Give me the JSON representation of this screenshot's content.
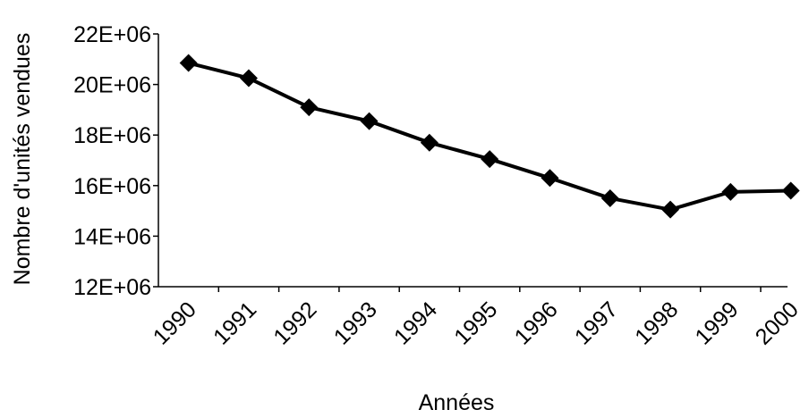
{
  "chart_data": {
    "type": "line",
    "title": "",
    "xlabel": "Années",
    "ylabel": "Nombre d'unités vendues",
    "categories": [
      "1990",
      "1991",
      "1992",
      "1993",
      "1994",
      "1995",
      "1996",
      "1997",
      "1998",
      "1999",
      "2000"
    ],
    "series": [
      {
        "values": [
          20850000.0,
          20250000.0,
          19100000.0,
          18550000.0,
          17700000.0,
          17050000.0,
          16300000.0,
          15500000.0,
          15050000.0,
          15750000.0,
          15800000.0
        ]
      }
    ],
    "yticks": [
      12000000.0,
      14000000.0,
      16000000.0,
      18000000.0,
      20000000.0,
      22000000.0
    ],
    "ytick_labels": [
      "12E+06",
      "14E+06",
      "16E+06",
      "18E+06",
      "20E+06",
      "22E+06"
    ],
    "ylim": [
      12000000.0,
      22000000.0
    ],
    "grid": false,
    "legend": "none",
    "marker": "diamond",
    "line_color": "#000000",
    "marker_color": "#000000"
  }
}
